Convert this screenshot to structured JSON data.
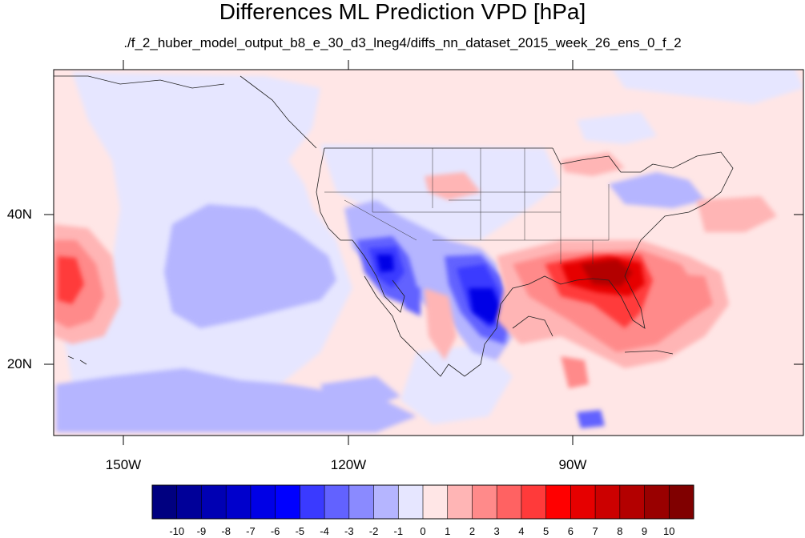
{
  "title": "Differences ML Prediction VPD [hPa]",
  "subtitle": "./f_2_huber_model_output_b8_e_30_d3_lneg4/diffs_nn_dataset_2015_week_26_ens_0_f_2",
  "map": {
    "lon_range": [
      -160,
      -60
    ],
    "lat_range": [
      11,
      60
    ],
    "lon_ticks": [
      "150W",
      "120W",
      "90W"
    ],
    "lat_ticks": [
      "40N",
      "20N"
    ]
  },
  "colorbar": {
    "labels": [
      "-10",
      "-9",
      "-8",
      "-7",
      "-6",
      "-5",
      "-4",
      "-3",
      "-2",
      "-1",
      "0",
      "1",
      "2",
      "3",
      "4",
      "5",
      "6",
      "7",
      "8",
      "9",
      "10"
    ],
    "colors": [
      "#000080",
      "#000099",
      "#0000b3",
      "#0000cc",
      "#0000e6",
      "#0000ff",
      "#3a3aff",
      "#6262ff",
      "#8a8aff",
      "#b5b5ff",
      "#e6e6ff",
      "#ffe6e6",
      "#ffb5b5",
      "#ff8a8a",
      "#ff6262",
      "#ff3a3a",
      "#ff0000",
      "#e60000",
      "#cc0000",
      "#b30000",
      "#990000",
      "#800000"
    ]
  }
}
